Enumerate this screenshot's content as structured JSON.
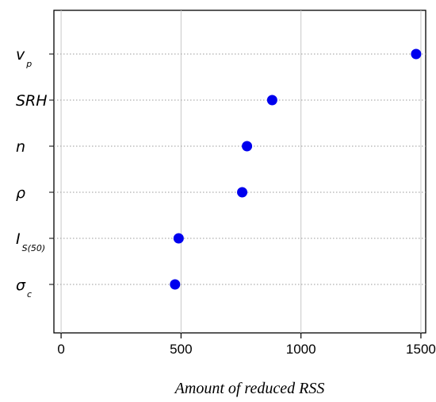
{
  "chart_data": {
    "type": "scatter",
    "title": "",
    "xlabel": "Amount of reduced RSS",
    "ylabel": "",
    "xlim": [
      -30,
      1520
    ],
    "x_ticks": [
      0,
      500,
      1000,
      1500
    ],
    "x_tick_labels": [
      "0",
      "500",
      "1000",
      "1500"
    ],
    "grid": true,
    "legend": "none",
    "marker_color": "#0000ee",
    "categories": [
      {
        "main": "v",
        "sub": "p"
      },
      {
        "main": "SRH",
        "sub": ""
      },
      {
        "main": "n",
        "sub": ""
      },
      {
        "main": "ρ",
        "sub": ""
      },
      {
        "main": "I",
        "sub": "S(50)"
      },
      {
        "main": "σ",
        "sub": "c"
      }
    ],
    "values": [
      1480,
      880,
      775,
      755,
      490,
      475
    ]
  }
}
